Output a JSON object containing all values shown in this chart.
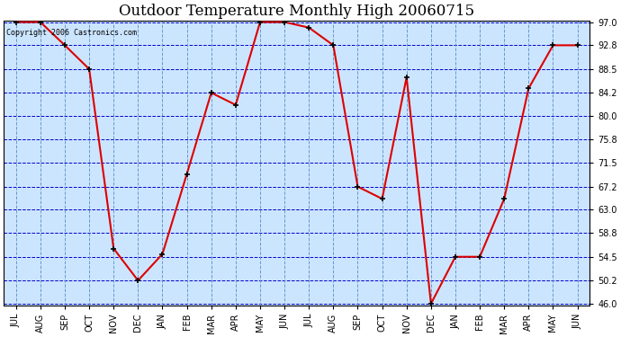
{
  "title": "Outdoor Temperature Monthly High 20060715",
  "copyright_text": "Copyright 2006 Castronics.com",
  "x_labels": [
    "JUL",
    "AUG",
    "SEP",
    "OCT",
    "NOV",
    "DEC",
    "JAN",
    "FEB",
    "MAR",
    "APR",
    "MAY",
    "JUN",
    "JUL",
    "AUG",
    "SEP",
    "OCT",
    "NOV",
    "DEC",
    "JAN",
    "FEB",
    "MAR",
    "APR",
    "MAY",
    "JUN"
  ],
  "y_values": [
    97.0,
    97.0,
    92.8,
    88.5,
    56.0,
    50.2,
    55.0,
    69.5,
    84.2,
    82.0,
    97.0,
    97.0,
    96.0,
    92.8,
    67.2,
    65.0,
    87.0,
    46.0,
    54.5,
    54.5,
    65.0,
    85.0,
    92.8,
    92.8
  ],
  "line_color": "#dd0000",
  "marker_color": "#000000",
  "plot_bg_color": "#cce5ff",
  "outer_bg_color": "#ffffff",
  "grid_color_h": "#0000cc",
  "grid_color_v": "#6699cc",
  "title_fontsize": 12,
  "copyright_fontsize": 6,
  "tick_fontsize": 7,
  "ylim_min": 46.0,
  "ylim_max": 97.0,
  "yticks": [
    46.0,
    50.2,
    54.5,
    58.8,
    63.0,
    67.2,
    71.5,
    75.8,
    80.0,
    84.2,
    88.5,
    92.8,
    97.0
  ]
}
